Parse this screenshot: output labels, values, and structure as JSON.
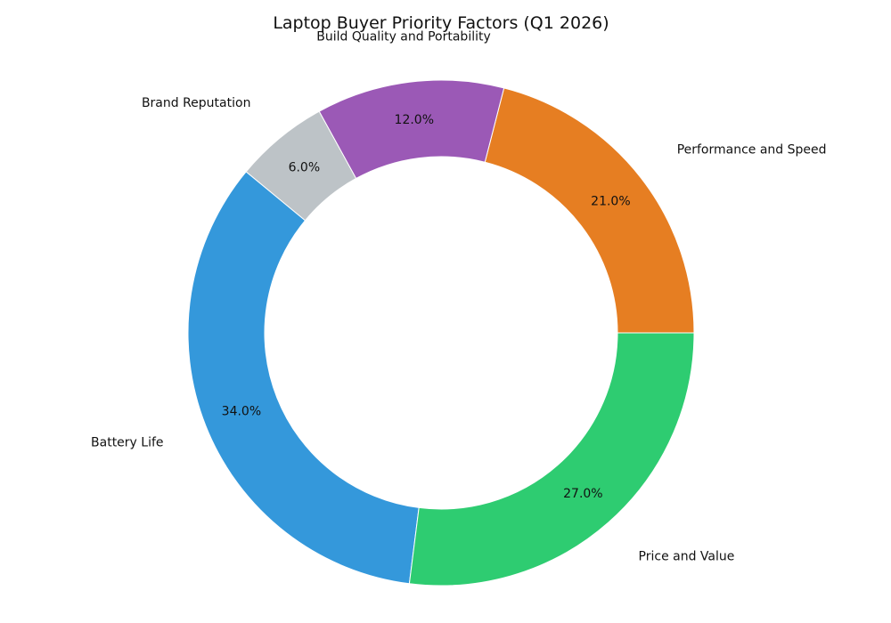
{
  "chart_data": {
    "type": "pie",
    "variant": "donut",
    "title": "Laptop Buyer Priority Factors (Q1 2026)",
    "start_angle_deg": 0,
    "direction": "counterclockwise",
    "slices": [
      {
        "label": "Performance and Speed",
        "value": 21.0,
        "value_label": "21.0%",
        "color": "#e67e22"
      },
      {
        "label": "Build Quality and Portability",
        "value": 12.0,
        "value_label": "12.0%",
        "color": "#9b59b6"
      },
      {
        "label": "Brand Reputation",
        "value": 6.0,
        "value_label": "6.0%",
        "color": "#bdc3c7"
      },
      {
        "label": "Battery Life",
        "value": 34.0,
        "value_label": "34.0%",
        "color": "#3498db"
      },
      {
        "label": "Price and Value",
        "value": 27.0,
        "value_label": "27.0%",
        "color": "#2ecc71"
      }
    ],
    "legend": "none"
  }
}
